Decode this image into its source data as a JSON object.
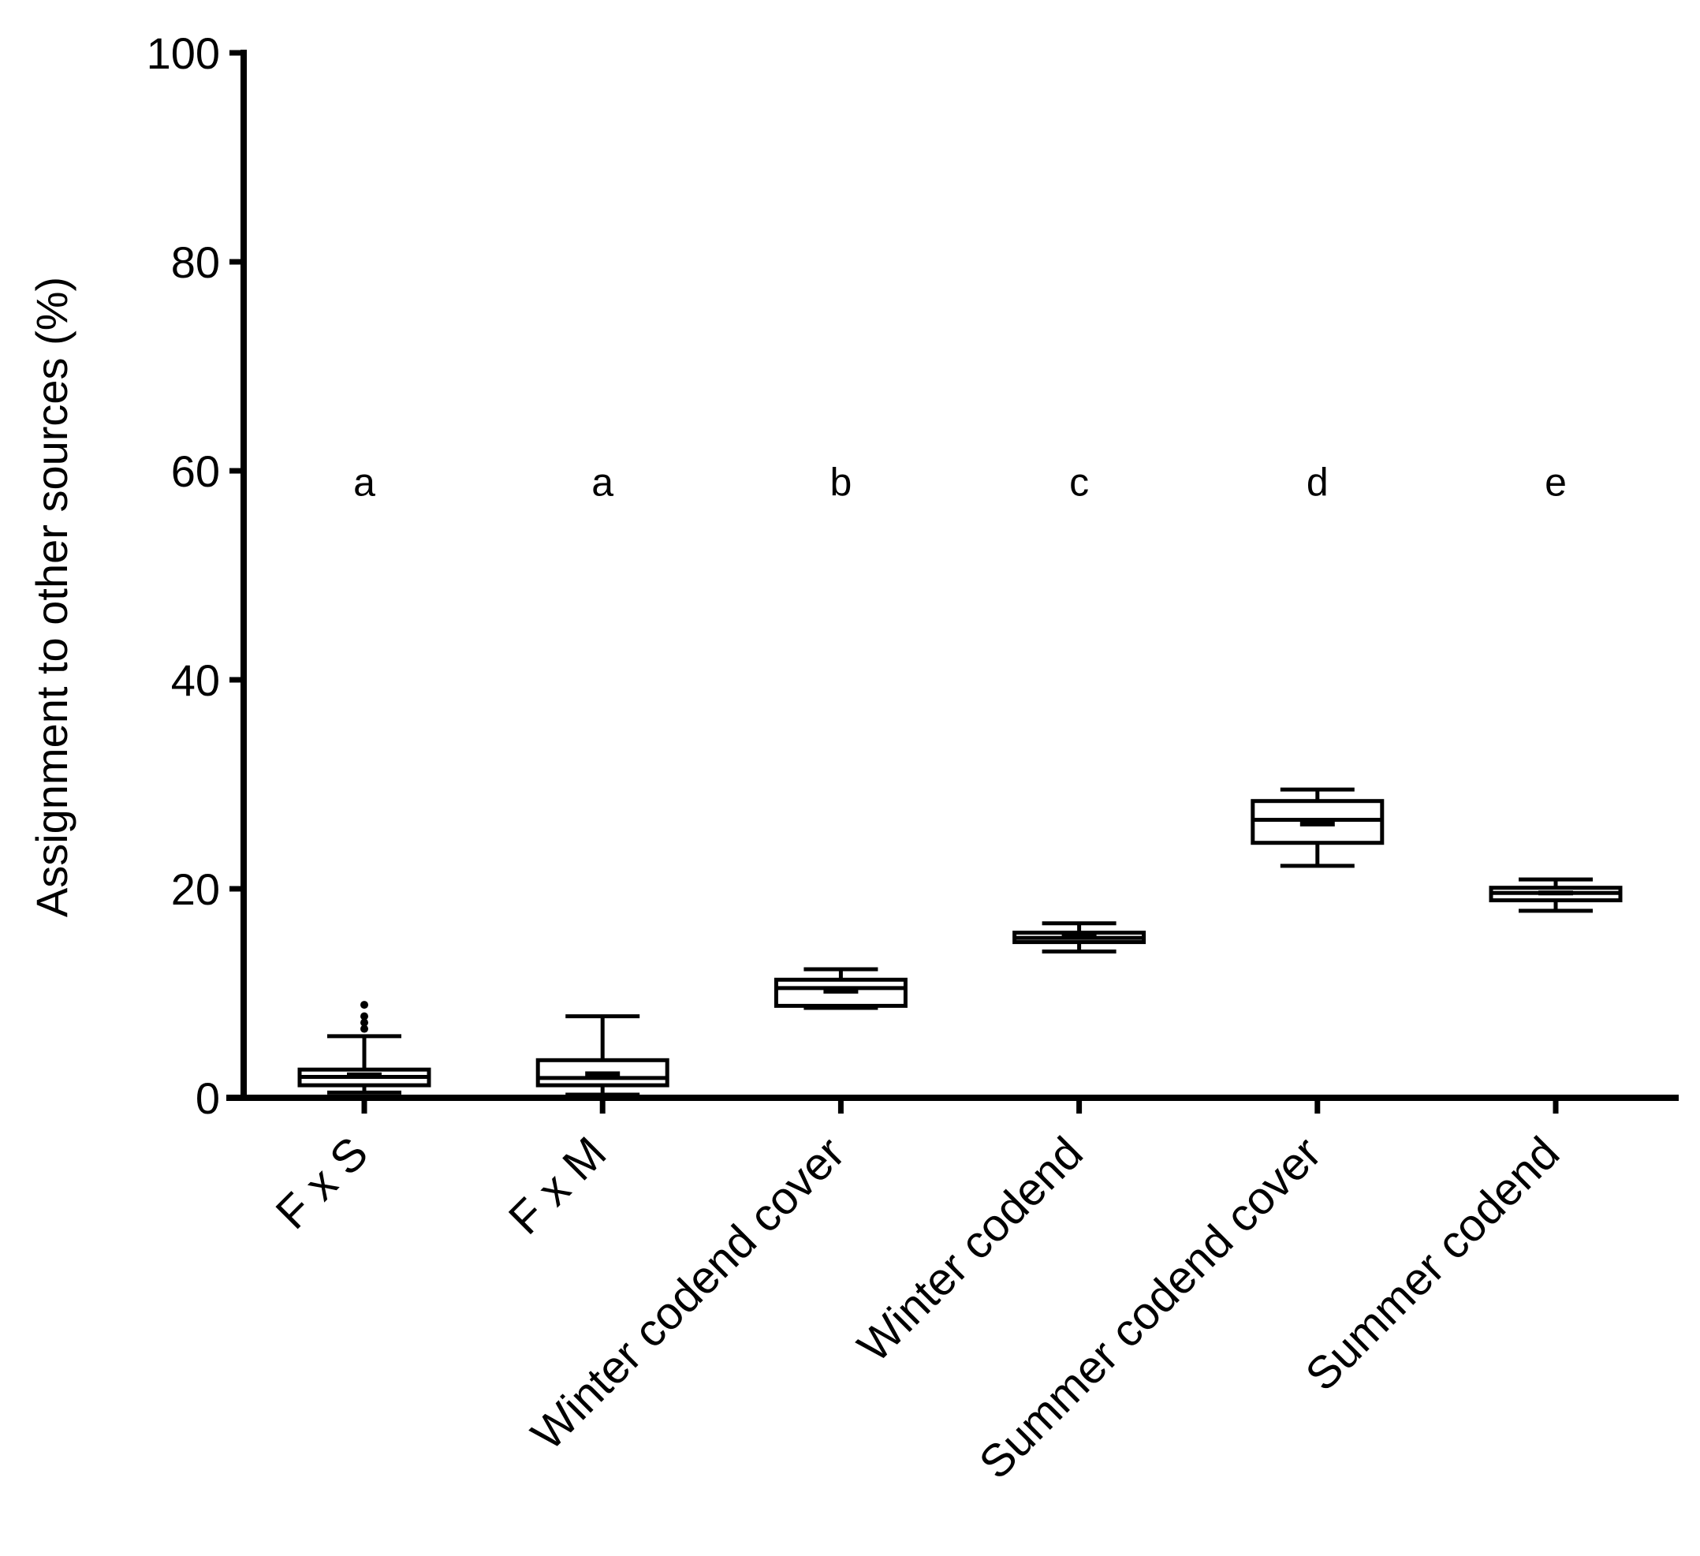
{
  "chart_data": {
    "type": "box",
    "title": "",
    "xlabel": "",
    "ylabel": "Assignment to other sources (%)",
    "ylim": [
      0,
      100
    ],
    "yticks": [
      0,
      20,
      40,
      60,
      80,
      100
    ],
    "grid": false,
    "legend": "none",
    "categories": [
      "F x S",
      "F x M",
      "Winter codend cover",
      "Winter codend",
      "Summer codend cover",
      "Summer codend"
    ],
    "significance_letters": [
      "a",
      "a",
      "b",
      "c",
      "d",
      "e"
    ],
    "boxes": [
      {
        "category": "F x S",
        "whisker_low": 0.5,
        "q1": 1.2,
        "median": 2.0,
        "mean": 2.2,
        "q3": 2.7,
        "whisker_high": 5.9,
        "outliers": [
          6.6,
          7.2,
          7.8,
          8.9
        ]
      },
      {
        "category": "F x M",
        "whisker_low": 0.3,
        "q1": 1.2,
        "median": 1.9,
        "mean": 2.3,
        "q3": 3.6,
        "whisker_high": 7.8,
        "outliers": []
      },
      {
        "category": "Winter codend cover",
        "whisker_low": 8.6,
        "q1": 8.8,
        "median": 10.5,
        "mean": 10.2,
        "q3": 11.3,
        "whisker_high": 12.3,
        "outliers": []
      },
      {
        "category": "Winter codend",
        "whisker_low": 14.0,
        "q1": 14.9,
        "median": 15.3,
        "mean": 15.4,
        "q3": 15.8,
        "whisker_high": 16.7,
        "outliers": []
      },
      {
        "category": "Summer codend cover",
        "whisker_low": 22.2,
        "q1": 24.4,
        "median": 26.6,
        "mean": 26.2,
        "q3": 28.4,
        "whisker_high": 29.5,
        "outliers": []
      },
      {
        "category": "Summer codend",
        "whisker_low": 17.9,
        "q1": 18.9,
        "median": 19.6,
        "mean": 19.6,
        "q3": 20.1,
        "whisker_high": 20.9,
        "outliers": []
      }
    ]
  }
}
